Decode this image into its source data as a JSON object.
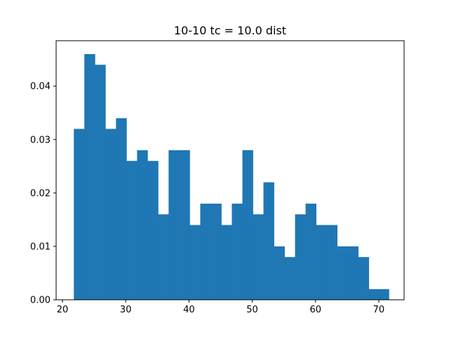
{
  "chart_data": {
    "type": "bar",
    "title": "10-10 tc = 10.0 dist",
    "xlabel": "",
    "ylabel": "",
    "xlim": [
      19.0,
      74.0
    ],
    "ylim": [
      0.0,
      0.0485
    ],
    "xticks": [
      20,
      30,
      40,
      50,
      60,
      70
    ],
    "yticks": [
      0.0,
      0.01,
      0.02,
      0.03,
      0.04
    ],
    "xtick_labels": [
      "20",
      "30",
      "40",
      "50",
      "60",
      "70"
    ],
    "ytick_labels": [
      "0.00",
      "0.01",
      "0.02",
      "0.03",
      "0.04"
    ],
    "bins": {
      "edges": [
        21.8,
        23.46,
        25.13,
        26.79,
        28.46,
        30.12,
        31.79,
        33.45,
        35.12,
        36.78,
        38.45,
        40.11,
        41.78,
        43.44,
        45.11,
        46.77,
        48.44,
        50.1,
        51.77,
        53.43,
        55.1,
        56.76,
        58.43,
        60.09,
        61.76,
        63.42,
        65.09,
        66.75,
        68.42,
        70.08,
        71.6
      ],
      "values": [
        0.032,
        0.046,
        0.044,
        0.032,
        0.034,
        0.026,
        0.028,
        0.026,
        0.016,
        0.028,
        0.028,
        0.014,
        0.018,
        0.018,
        0.014,
        0.018,
        0.028,
        0.016,
        0.022,
        0.01,
        0.008,
        0.016,
        0.018,
        0.014,
        0.014,
        0.01,
        0.01,
        0.008,
        0.002,
        0.002
      ]
    },
    "grid": false,
    "bar_color": "#1f77b4"
  }
}
